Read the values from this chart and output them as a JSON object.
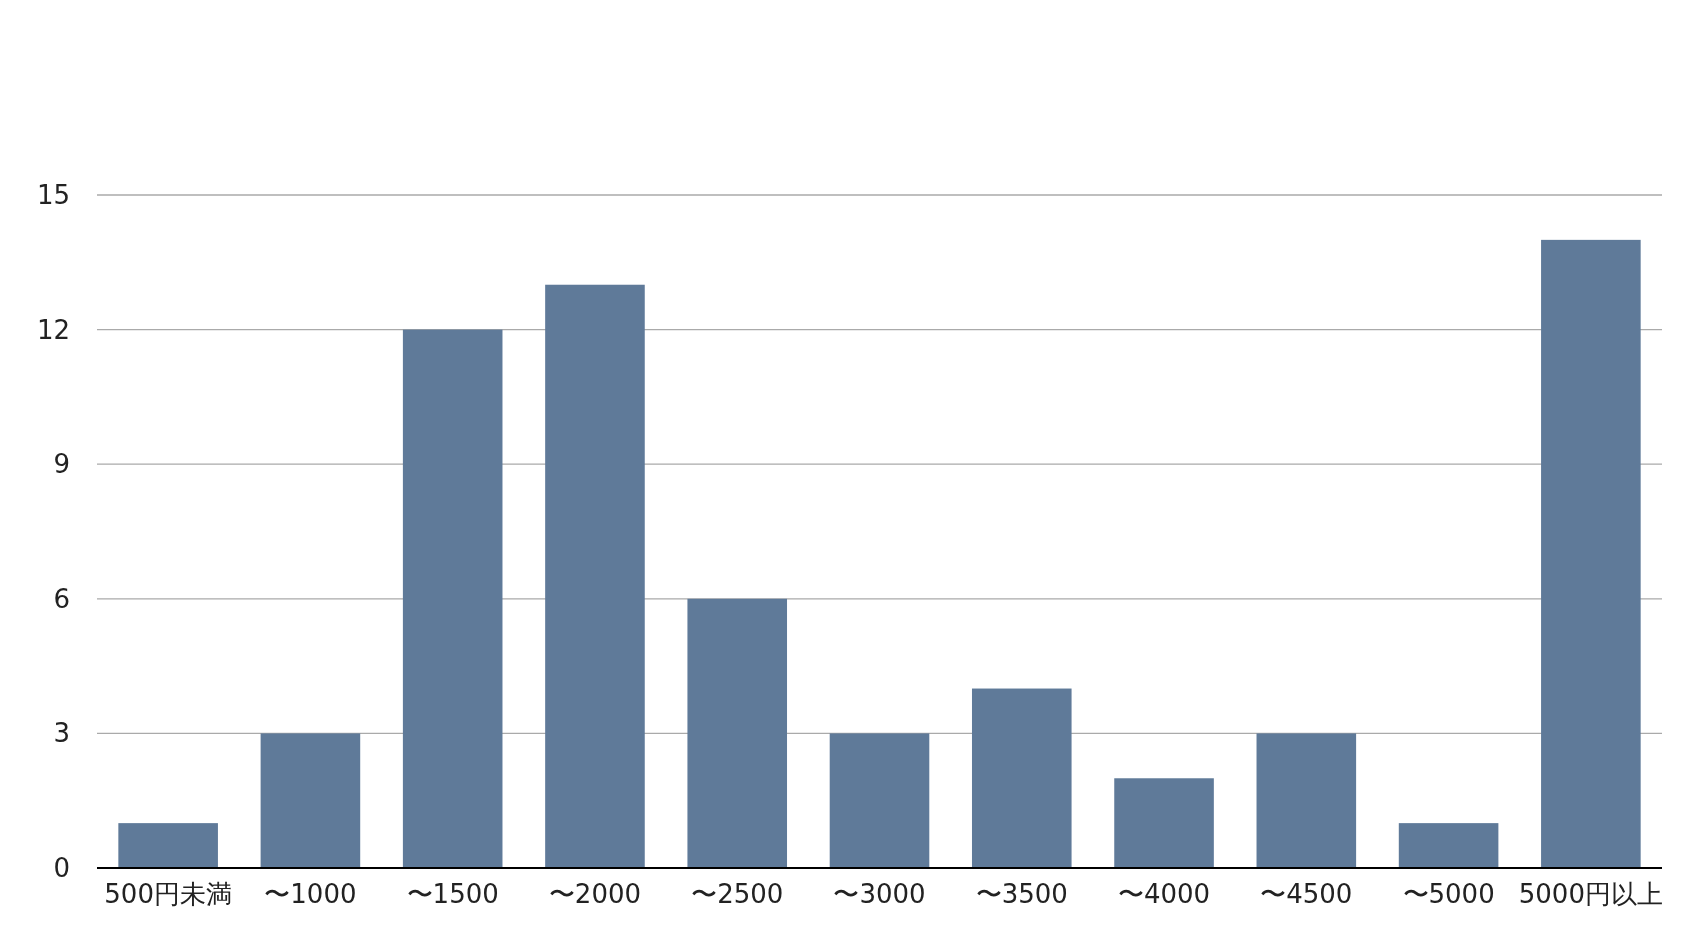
{
  "chart_data": {
    "type": "bar",
    "categories": [
      "500円未満",
      "〜1000",
      "〜1500",
      "〜2000",
      "〜2500",
      "〜3000",
      "〜3500",
      "〜4000",
      "〜4500",
      "〜5000",
      "5000円以上"
    ],
    "values": [
      1,
      3,
      12,
      13,
      6,
      3,
      4,
      2,
      3,
      1,
      14
    ],
    "color": "#5f7a99",
    "ylim": [
      0,
      15
    ],
    "yticks": [
      0,
      3,
      6,
      9,
      12,
      15
    ],
    "grid": "y"
  }
}
